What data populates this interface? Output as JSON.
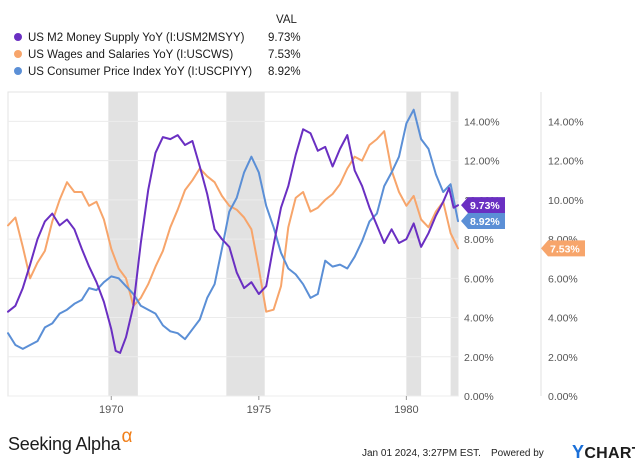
{
  "legend": {
    "header": "VAL",
    "items": [
      {
        "name": "US M2 Money Supply YoY (I:USM2MSYY)",
        "value": "9.73%",
        "color": "#6a2fc2"
      },
      {
        "name": "US Wages and Salaries YoY (I:USCWS)",
        "value": "7.53%",
        "color": "#f7a56b"
      },
      {
        "name": "US Consumer Price Index YoY (I:USCPIYY)",
        "value": "8.92%",
        "color": "#5b8fd6"
      }
    ]
  },
  "footer": {
    "brand": "Seeking Alpha",
    "brand_mark": "α",
    "timestamp": "Jan 01 2024, 3:27PM EST.",
    "powered_by": "Powered by",
    "provider": "CHARTS",
    "provider_mark": "Y"
  },
  "chart_data": {
    "type": "line",
    "xlim": [
      1966.5,
      1981.75
    ],
    "ylim": [
      0,
      15.5
    ],
    "x_ticks": [
      1970,
      1975,
      1980
    ],
    "x_tick_labels": [
      "1970",
      "1975",
      "1980"
    ],
    "y_ticks": [
      0,
      2,
      4,
      6,
      8,
      10,
      12,
      14
    ],
    "y_tick_labels": [
      "0.00%",
      "2.00%",
      "4.00%",
      "6.00%",
      "8.00%",
      "10.00%",
      "12.00%",
      "14.00%"
    ],
    "recessions": [
      [
        1969.9,
        1970.9
      ],
      [
        1973.9,
        1975.2
      ],
      [
        1980.0,
        1980.5
      ],
      [
        1981.5,
        1981.75
      ]
    ],
    "series": [
      {
        "name": "US M2 Money Supply YoY (I:USM2MSYY)",
        "color": "#6a2fc2",
        "last_value_label": "9.73%",
        "points": [
          [
            1966.5,
            4.3
          ],
          [
            1966.75,
            4.6
          ],
          [
            1967.0,
            5.5
          ],
          [
            1967.25,
            6.7
          ],
          [
            1967.5,
            8.0
          ],
          [
            1967.75,
            8.9
          ],
          [
            1968.0,
            9.3
          ],
          [
            1968.25,
            8.7
          ],
          [
            1968.5,
            9.0
          ],
          [
            1968.75,
            8.5
          ],
          [
            1969.0,
            7.5
          ],
          [
            1969.25,
            6.6
          ],
          [
            1969.5,
            5.8
          ],
          [
            1969.75,
            4.8
          ],
          [
            1970.0,
            3.4
          ],
          [
            1970.15,
            2.3
          ],
          [
            1970.3,
            2.2
          ],
          [
            1970.5,
            3.0
          ],
          [
            1970.75,
            4.6
          ],
          [
            1971.0,
            7.8
          ],
          [
            1971.25,
            10.5
          ],
          [
            1971.5,
            12.4
          ],
          [
            1971.75,
            13.2
          ],
          [
            1972.0,
            13.1
          ],
          [
            1972.25,
            13.3
          ],
          [
            1972.5,
            12.8
          ],
          [
            1972.75,
            13.0
          ],
          [
            1973.0,
            11.7
          ],
          [
            1973.25,
            10.3
          ],
          [
            1973.5,
            8.5
          ],
          [
            1973.75,
            8.0
          ],
          [
            1974.0,
            7.6
          ],
          [
            1974.25,
            6.3
          ],
          [
            1974.5,
            5.5
          ],
          [
            1974.75,
            5.8
          ],
          [
            1975.0,
            5.2
          ],
          [
            1975.25,
            5.6
          ],
          [
            1975.5,
            7.7
          ],
          [
            1975.75,
            9.6
          ],
          [
            1976.0,
            10.7
          ],
          [
            1976.25,
            12.3
          ],
          [
            1976.5,
            13.6
          ],
          [
            1976.75,
            13.4
          ],
          [
            1977.0,
            12.5
          ],
          [
            1977.25,
            12.7
          ],
          [
            1977.5,
            11.7
          ],
          [
            1977.75,
            12.6
          ],
          [
            1978.0,
            13.3
          ],
          [
            1978.25,
            11.5
          ],
          [
            1978.5,
            10.7
          ],
          [
            1978.75,
            9.6
          ],
          [
            1979.0,
            8.7
          ],
          [
            1979.25,
            7.8
          ],
          [
            1979.5,
            8.5
          ],
          [
            1979.75,
            7.8
          ],
          [
            1980.0,
            8.0
          ],
          [
            1980.25,
            8.8
          ],
          [
            1980.5,
            7.6
          ],
          [
            1980.75,
            8.3
          ],
          [
            1981.0,
            9.2
          ],
          [
            1981.25,
            9.9
          ],
          [
            1981.45,
            10.6
          ],
          [
            1981.6,
            9.6
          ],
          [
            1981.75,
            9.73
          ]
        ]
      },
      {
        "name": "US Wages and Salaries YoY (I:USCWS)",
        "color": "#f7a56b",
        "last_value_label": "7.53%",
        "points": [
          [
            1966.5,
            8.7
          ],
          [
            1966.75,
            9.1
          ],
          [
            1967.0,
            7.6
          ],
          [
            1967.25,
            6.0
          ],
          [
            1967.5,
            6.8
          ],
          [
            1967.75,
            7.4
          ],
          [
            1968.0,
            8.9
          ],
          [
            1968.25,
            10.0
          ],
          [
            1968.5,
            10.9
          ],
          [
            1968.75,
            10.4
          ],
          [
            1969.0,
            10.4
          ],
          [
            1969.25,
            9.7
          ],
          [
            1969.5,
            9.9
          ],
          [
            1969.75,
            9.0
          ],
          [
            1970.0,
            7.5
          ],
          [
            1970.25,
            6.5
          ],
          [
            1970.5,
            6.0
          ],
          [
            1970.75,
            4.6
          ],
          [
            1971.0,
            5.0
          ],
          [
            1971.25,
            5.7
          ],
          [
            1971.5,
            6.6
          ],
          [
            1971.75,
            7.4
          ],
          [
            1972.0,
            8.6
          ],
          [
            1972.25,
            9.5
          ],
          [
            1972.5,
            10.5
          ],
          [
            1972.75,
            11.0
          ],
          [
            1973.0,
            11.6
          ],
          [
            1973.25,
            11.2
          ],
          [
            1973.5,
            10.9
          ],
          [
            1973.75,
            10.2
          ],
          [
            1974.0,
            9.7
          ],
          [
            1974.25,
            9.5
          ],
          [
            1974.5,
            9.1
          ],
          [
            1974.75,
            8.5
          ],
          [
            1975.0,
            6.5
          ],
          [
            1975.25,
            4.3
          ],
          [
            1975.5,
            4.4
          ],
          [
            1975.75,
            5.6
          ],
          [
            1976.0,
            8.6
          ],
          [
            1976.25,
            10.1
          ],
          [
            1976.5,
            10.4
          ],
          [
            1976.75,
            9.4
          ],
          [
            1977.0,
            9.6
          ],
          [
            1977.25,
            10.0
          ],
          [
            1977.5,
            10.3
          ],
          [
            1977.75,
            10.8
          ],
          [
            1978.0,
            11.6
          ],
          [
            1978.25,
            12.2
          ],
          [
            1978.5,
            12.0
          ],
          [
            1978.75,
            12.8
          ],
          [
            1979.0,
            13.1
          ],
          [
            1979.25,
            13.5
          ],
          [
            1979.5,
            11.5
          ],
          [
            1979.75,
            10.4
          ],
          [
            1980.0,
            9.7
          ],
          [
            1980.25,
            10.2
          ],
          [
            1980.5,
            9.0
          ],
          [
            1980.75,
            8.6
          ],
          [
            1981.0,
            9.4
          ],
          [
            1981.25,
            9.9
          ],
          [
            1981.5,
            8.3
          ],
          [
            1981.75,
            7.53
          ]
        ]
      },
      {
        "name": "US Consumer Price Index YoY (I:USCPIYY)",
        "color": "#5b8fd6",
        "last_value_label": "8.92%",
        "points": [
          [
            1966.5,
            3.2
          ],
          [
            1966.75,
            2.6
          ],
          [
            1967.0,
            2.4
          ],
          [
            1967.25,
            2.6
          ],
          [
            1967.5,
            2.8
          ],
          [
            1967.75,
            3.5
          ],
          [
            1968.0,
            3.7
          ],
          [
            1968.25,
            4.2
          ],
          [
            1968.5,
            4.4
          ],
          [
            1968.75,
            4.7
          ],
          [
            1969.0,
            4.9
          ],
          [
            1969.25,
            5.5
          ],
          [
            1969.5,
            5.4
          ],
          [
            1969.75,
            5.8
          ],
          [
            1970.0,
            6.1
          ],
          [
            1970.25,
            6.0
          ],
          [
            1970.5,
            5.6
          ],
          [
            1970.75,
            5.2
          ],
          [
            1971.0,
            4.6
          ],
          [
            1971.25,
            4.4
          ],
          [
            1971.5,
            4.2
          ],
          [
            1971.75,
            3.6
          ],
          [
            1972.0,
            3.3
          ],
          [
            1972.25,
            3.2
          ],
          [
            1972.5,
            2.9
          ],
          [
            1972.75,
            3.4
          ],
          [
            1973.0,
            3.9
          ],
          [
            1973.25,
            5.0
          ],
          [
            1973.5,
            5.7
          ],
          [
            1973.75,
            7.5
          ],
          [
            1974.0,
            9.4
          ],
          [
            1974.25,
            10.1
          ],
          [
            1974.5,
            11.4
          ],
          [
            1974.75,
            12.2
          ],
          [
            1975.0,
            11.4
          ],
          [
            1975.25,
            9.7
          ],
          [
            1975.5,
            8.6
          ],
          [
            1975.75,
            7.3
          ],
          [
            1976.0,
            6.5
          ],
          [
            1976.25,
            6.2
          ],
          [
            1976.5,
            5.7
          ],
          [
            1976.75,
            5.0
          ],
          [
            1977.0,
            5.2
          ],
          [
            1977.25,
            6.9
          ],
          [
            1977.5,
            6.6
          ],
          [
            1977.75,
            6.7
          ],
          [
            1978.0,
            6.5
          ],
          [
            1978.25,
            7.1
          ],
          [
            1978.5,
            7.9
          ],
          [
            1978.75,
            8.9
          ],
          [
            1979.0,
            9.3
          ],
          [
            1979.25,
            10.7
          ],
          [
            1979.5,
            11.4
          ],
          [
            1979.75,
            12.2
          ],
          [
            1980.0,
            13.9
          ],
          [
            1980.25,
            14.6
          ],
          [
            1980.5,
            13.1
          ],
          [
            1980.75,
            12.6
          ],
          [
            1981.0,
            11.3
          ],
          [
            1981.25,
            10.4
          ],
          [
            1981.5,
            10.8
          ],
          [
            1981.75,
            8.92
          ]
        ]
      }
    ]
  }
}
